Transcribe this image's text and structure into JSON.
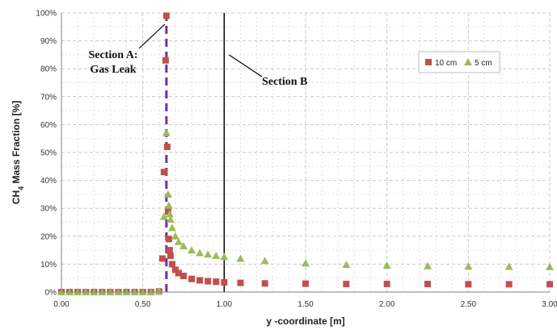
{
  "chart_data": {
    "type": "scatter",
    "xlabel": "y -coordinate [m]",
    "ylabel": {
      "prefix": "CH",
      "sub": "4",
      "suffix": " Mass Fraction [%]"
    },
    "xlim": [
      0,
      3
    ],
    "ylim": [
      0,
      100
    ],
    "x_ticks": [
      "0.00",
      "0.50",
      "1.00",
      "1.50",
      "2.00",
      "2.50",
      "3.00"
    ],
    "y_ticks": [
      "0%",
      "10%",
      "20%",
      "30%",
      "40%",
      "50%",
      "60%",
      "70%",
      "80%",
      "90%",
      "100%"
    ],
    "grid": true,
    "legend_position": "top-right",
    "colors": {
      "series_10cm": "#c0504d",
      "series_5cm": "#9bbb59",
      "section_a_line": "#7030a0",
      "section_b_line": "#000000"
    },
    "series": [
      {
        "name": "10 cm",
        "marker": "square",
        "points": [
          [
            0.0,
            0.0
          ],
          [
            0.05,
            0.0
          ],
          [
            0.1,
            0.0
          ],
          [
            0.15,
            0.0
          ],
          [
            0.2,
            0.0
          ],
          [
            0.25,
            0.0
          ],
          [
            0.3,
            0.0
          ],
          [
            0.35,
            0.0
          ],
          [
            0.4,
            0.0
          ],
          [
            0.45,
            0.0
          ],
          [
            0.5,
            0.0
          ],
          [
            0.55,
            0.0
          ],
          [
            0.6,
            0.2
          ],
          [
            0.62,
            12
          ],
          [
            0.63,
            43
          ],
          [
            0.64,
            83
          ],
          [
            0.645,
            99
          ],
          [
            0.65,
            52
          ],
          [
            0.655,
            29
          ],
          [
            0.66,
            19
          ],
          [
            0.665,
            15
          ],
          [
            0.67,
            13
          ],
          [
            0.68,
            10
          ],
          [
            0.7,
            8
          ],
          [
            0.72,
            6.8
          ],
          [
            0.75,
            5.8
          ],
          [
            0.8,
            4.7
          ],
          [
            0.85,
            4.2
          ],
          [
            0.9,
            3.9
          ],
          [
            0.95,
            3.7
          ],
          [
            1.0,
            3.5
          ],
          [
            1.1,
            3.3
          ],
          [
            1.25,
            3.1
          ],
          [
            1.5,
            3.0
          ],
          [
            1.75,
            2.9
          ],
          [
            2.0,
            2.9
          ],
          [
            2.25,
            2.9
          ],
          [
            2.5,
            2.8
          ],
          [
            2.75,
            2.8
          ],
          [
            3.0,
            2.8
          ]
        ]
      },
      {
        "name": "5 cm",
        "marker": "triangle",
        "points": [
          [
            0.0,
            0.0
          ],
          [
            0.05,
            0.0
          ],
          [
            0.1,
            0.0
          ],
          [
            0.15,
            0.0
          ],
          [
            0.2,
            0.0
          ],
          [
            0.25,
            0.0
          ],
          [
            0.3,
            0.0
          ],
          [
            0.35,
            0.0
          ],
          [
            0.4,
            0.0
          ],
          [
            0.45,
            0.0
          ],
          [
            0.5,
            0.0
          ],
          [
            0.55,
            0.0
          ],
          [
            0.6,
            0.3
          ],
          [
            0.63,
            27
          ],
          [
            0.645,
            57
          ],
          [
            0.655,
            35
          ],
          [
            0.66,
            31
          ],
          [
            0.665,
            28
          ],
          [
            0.67,
            26
          ],
          [
            0.68,
            23
          ],
          [
            0.7,
            20
          ],
          [
            0.72,
            18
          ],
          [
            0.75,
            16.5
          ],
          [
            0.8,
            15
          ],
          [
            0.85,
            14
          ],
          [
            0.9,
            13.5
          ],
          [
            0.95,
            13
          ],
          [
            1.0,
            12.6
          ],
          [
            1.1,
            12
          ],
          [
            1.25,
            11.2
          ],
          [
            1.5,
            10.3
          ],
          [
            1.75,
            9.8
          ],
          [
            2.0,
            9.5
          ],
          [
            2.25,
            9.3
          ],
          [
            2.5,
            9.2
          ],
          [
            2.75,
            9.1
          ],
          [
            3.0,
            9.0
          ]
        ]
      }
    ],
    "annotations": [
      {
        "type": "vline",
        "x": 0.645,
        "style": "dashed",
        "label_lines": [
          "Section A:",
          "Gas Leak"
        ]
      },
      {
        "type": "vline",
        "x": 1.0,
        "style": "solid",
        "label_lines": [
          "Section B"
        ]
      }
    ]
  }
}
